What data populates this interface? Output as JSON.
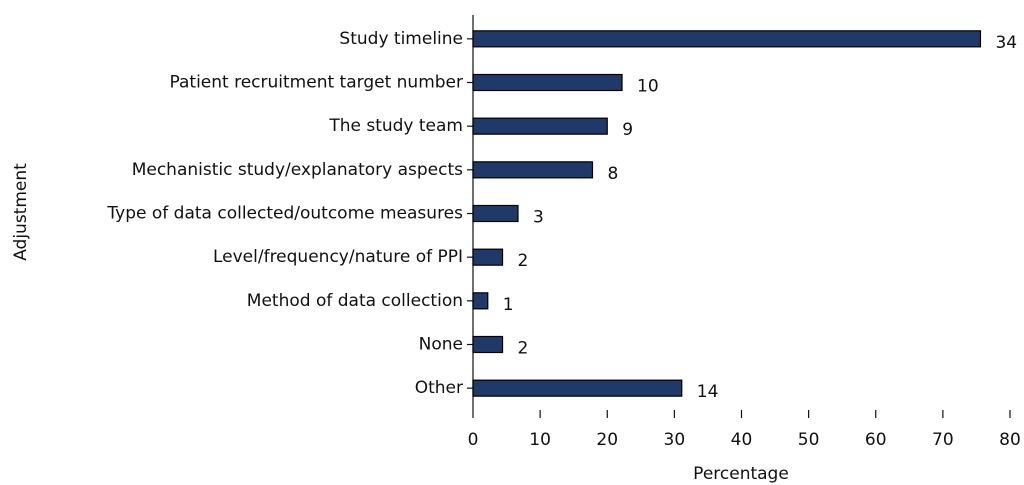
{
  "chart_data": {
    "type": "barh",
    "categories": [
      "Study timeline",
      "Patient recruitment target number",
      "The study team",
      "Mechanistic study/explanatory aspects",
      "Type of data collected/outcome measures",
      "Level/frequency/nature of PPI",
      "Method of data collection",
      "None",
      "Other"
    ],
    "values": [
      75.6,
      22.2,
      20,
      17.8,
      6.7,
      4.4,
      2.2,
      4.4,
      31.1
    ],
    "counts": [
      34,
      10,
      9,
      8,
      3,
      2,
      1,
      2,
      14
    ],
    "color": "#1f3a68",
    "xlim": [
      0,
      80
    ],
    "xticks": [
      0,
      10,
      20,
      30,
      40,
      50,
      60,
      70,
      80
    ],
    "x_label": "Percentage",
    "y_label": "Adjustment"
  }
}
